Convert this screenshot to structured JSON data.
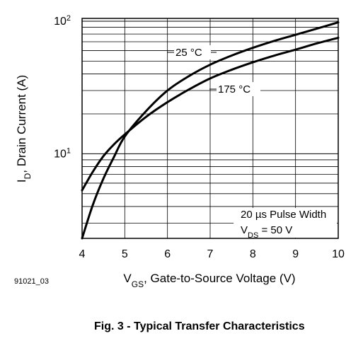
{
  "figure_id": "91021_03",
  "caption": "Fig. 3 - Typical Transfer Characteristics",
  "chart_data": {
    "type": "line",
    "xlabel_main": "V",
    "xlabel_sub": "GS",
    "xlabel_rest": ", Gate-to-Source Voltage (V)",
    "ylabel_main": "I",
    "ylabel_sub": "D",
    "ylabel_rest": ", Drain Current (A)",
    "x_scale": "linear",
    "y_scale": "log",
    "xlim": [
      4,
      10
    ],
    "ylim": [
      2.3,
      105
    ],
    "x_ticks": [
      "4",
      "5",
      "6",
      "7",
      "8",
      "9",
      "10"
    ],
    "y_ticks": [
      {
        "base": "10",
        "exp": "1",
        "value": 10
      },
      {
        "base": "10",
        "exp": "2",
        "value": 100
      }
    ],
    "grid": true,
    "series": [
      {
        "name": "25 °C",
        "x": [
          4.0,
          4.25,
          4.5,
          4.75,
          5.0,
          5.5,
          6.0,
          6.5,
          7.0,
          7.5,
          8.0,
          8.5,
          9.0,
          9.5,
          10.0
        ],
        "y": [
          2.3,
          4.1,
          6.5,
          9.5,
          13.5,
          21.0,
          30.0,
          38.5,
          47.0,
          55.0,
          63.0,
          71.0,
          79.0,
          88.0,
          98.0
        ]
      },
      {
        "name": "175 °C",
        "x": [
          4.0,
          4.25,
          4.5,
          4.75,
          5.0,
          5.5,
          6.0,
          6.5,
          7.0,
          7.5,
          8.0,
          8.5,
          9.0,
          9.5,
          10.0
        ],
        "y": [
          5.3,
          7.3,
          9.6,
          11.8,
          14.0,
          19.0,
          24.5,
          30.5,
          37.0,
          43.0,
          49.0,
          55.0,
          61.0,
          68.0,
          75.0
        ]
      }
    ],
    "annotations": {
      "label_25": "25 °C",
      "label_175": "175 °C",
      "pulse_note": "20 µs Pulse Width",
      "vds_main": "V",
      "vds_sub": "DS",
      "vds_rest": " = 50 V"
    }
  }
}
